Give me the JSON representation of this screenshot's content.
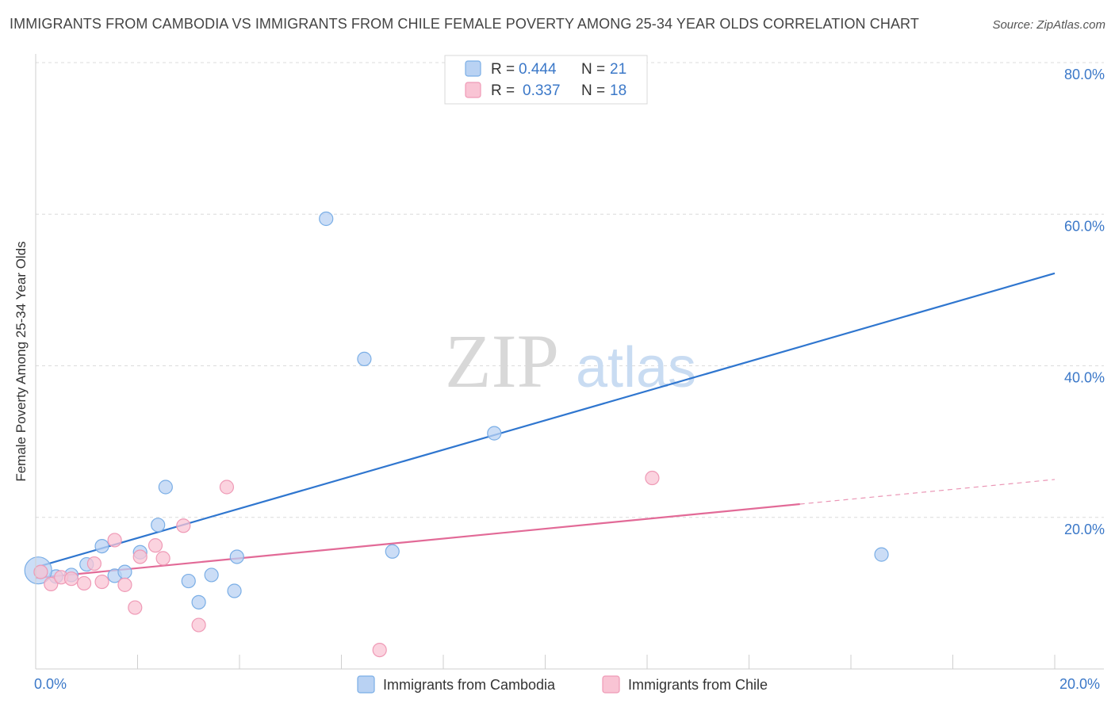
{
  "title": "IMMIGRANTS FROM CAMBODIA VS IMMIGRANTS FROM CHILE FEMALE POVERTY AMONG 25-34 YEAR OLDS CORRELATION CHART",
  "source": "Source: ZipAtlas.com",
  "watermark": {
    "zip": "ZIP",
    "atlas": "atlas"
  },
  "colors": {
    "cambodia_fill": "#b9d2f3",
    "cambodia_stroke": "#7aaee6",
    "cambodia_line": "#2f76cf",
    "chile_fill": "#f9c4d4",
    "chile_stroke": "#ef9ab6",
    "chile_line": "#e26a97",
    "grid": "#dcdcdc",
    "tick_text": "#3b78c8"
  },
  "legend": {
    "rows": [
      {
        "r_label": "R =",
        "r_value": "0.444",
        "n_label": "N =",
        "n_value": "21"
      },
      {
        "r_label": "R =",
        "r_value": "0.337",
        "n_label": "N =",
        "n_value": "18"
      }
    ]
  },
  "bottom_legend": [
    "Immigrants from Cambodia",
    "Immigrants from Chile"
  ],
  "chart_data": {
    "type": "scatter",
    "title": "IMMIGRANTS FROM CAMBODIA VS IMMIGRANTS FROM CHILE FEMALE POVERTY AMONG 25-34 YEAR OLDS CORRELATION CHART",
    "xlabel": "",
    "ylabel": "Female Poverty Among 25-34 Year Olds",
    "xlim": [
      0,
      20
    ],
    "ylim": [
      0,
      80
    ],
    "x_tick_labels": [
      "0.0%",
      "20.0%"
    ],
    "y_ticks": [
      20,
      40,
      60,
      80
    ],
    "y_tick_labels": [
      "20.0%",
      "40.0%",
      "60.0%",
      "80.0%"
    ],
    "grid": true,
    "series": [
      {
        "name": "Immigrants from Cambodia",
        "r": 0.444,
        "n": 21,
        "points": [
          [
            0.1,
            12.8
          ],
          [
            0.4,
            12.2
          ],
          [
            0.7,
            12.4
          ],
          [
            1.0,
            13.8
          ],
          [
            1.3,
            16.2
          ],
          [
            1.55,
            12.3
          ],
          [
            1.75,
            12.8
          ],
          [
            2.05,
            15.4
          ],
          [
            2.4,
            19.0
          ],
          [
            2.55,
            24.0
          ],
          [
            3.0,
            11.6
          ],
          [
            3.2,
            8.8
          ],
          [
            3.45,
            12.4
          ],
          [
            3.9,
            10.3
          ],
          [
            3.95,
            14.8
          ],
          [
            5.7,
            59.4
          ],
          [
            6.45,
            40.9
          ],
          [
            7.0,
            15.5
          ],
          [
            9.0,
            31.1
          ],
          [
            16.6,
            15.1
          ],
          [
            0.05,
            13.0
          ]
        ],
        "trend": {
          "x0": 0,
          "y0": 13.4,
          "x1": 20,
          "y1": 52.2,
          "dashed_from": null
        }
      },
      {
        "name": "Immigrants from Chile",
        "r": 0.337,
        "n": 18,
        "points": [
          [
            0.1,
            12.8
          ],
          [
            0.3,
            11.2
          ],
          [
            0.5,
            12.1
          ],
          [
            0.7,
            11.9
          ],
          [
            0.95,
            11.3
          ],
          [
            1.15,
            13.9
          ],
          [
            1.3,
            11.5
          ],
          [
            1.55,
            17.0
          ],
          [
            1.75,
            11.1
          ],
          [
            1.95,
            8.1
          ],
          [
            2.05,
            14.8
          ],
          [
            2.35,
            16.3
          ],
          [
            2.5,
            14.6
          ],
          [
            2.9,
            18.9
          ],
          [
            3.2,
            5.8
          ],
          [
            3.75,
            24.0
          ],
          [
            6.75,
            2.5
          ],
          [
            12.1,
            25.2
          ]
        ],
        "trend": {
          "x0": 0,
          "y0": 12.0,
          "x1": 20,
          "y1": 25.0,
          "dashed_from": 15.0
        }
      }
    ]
  }
}
